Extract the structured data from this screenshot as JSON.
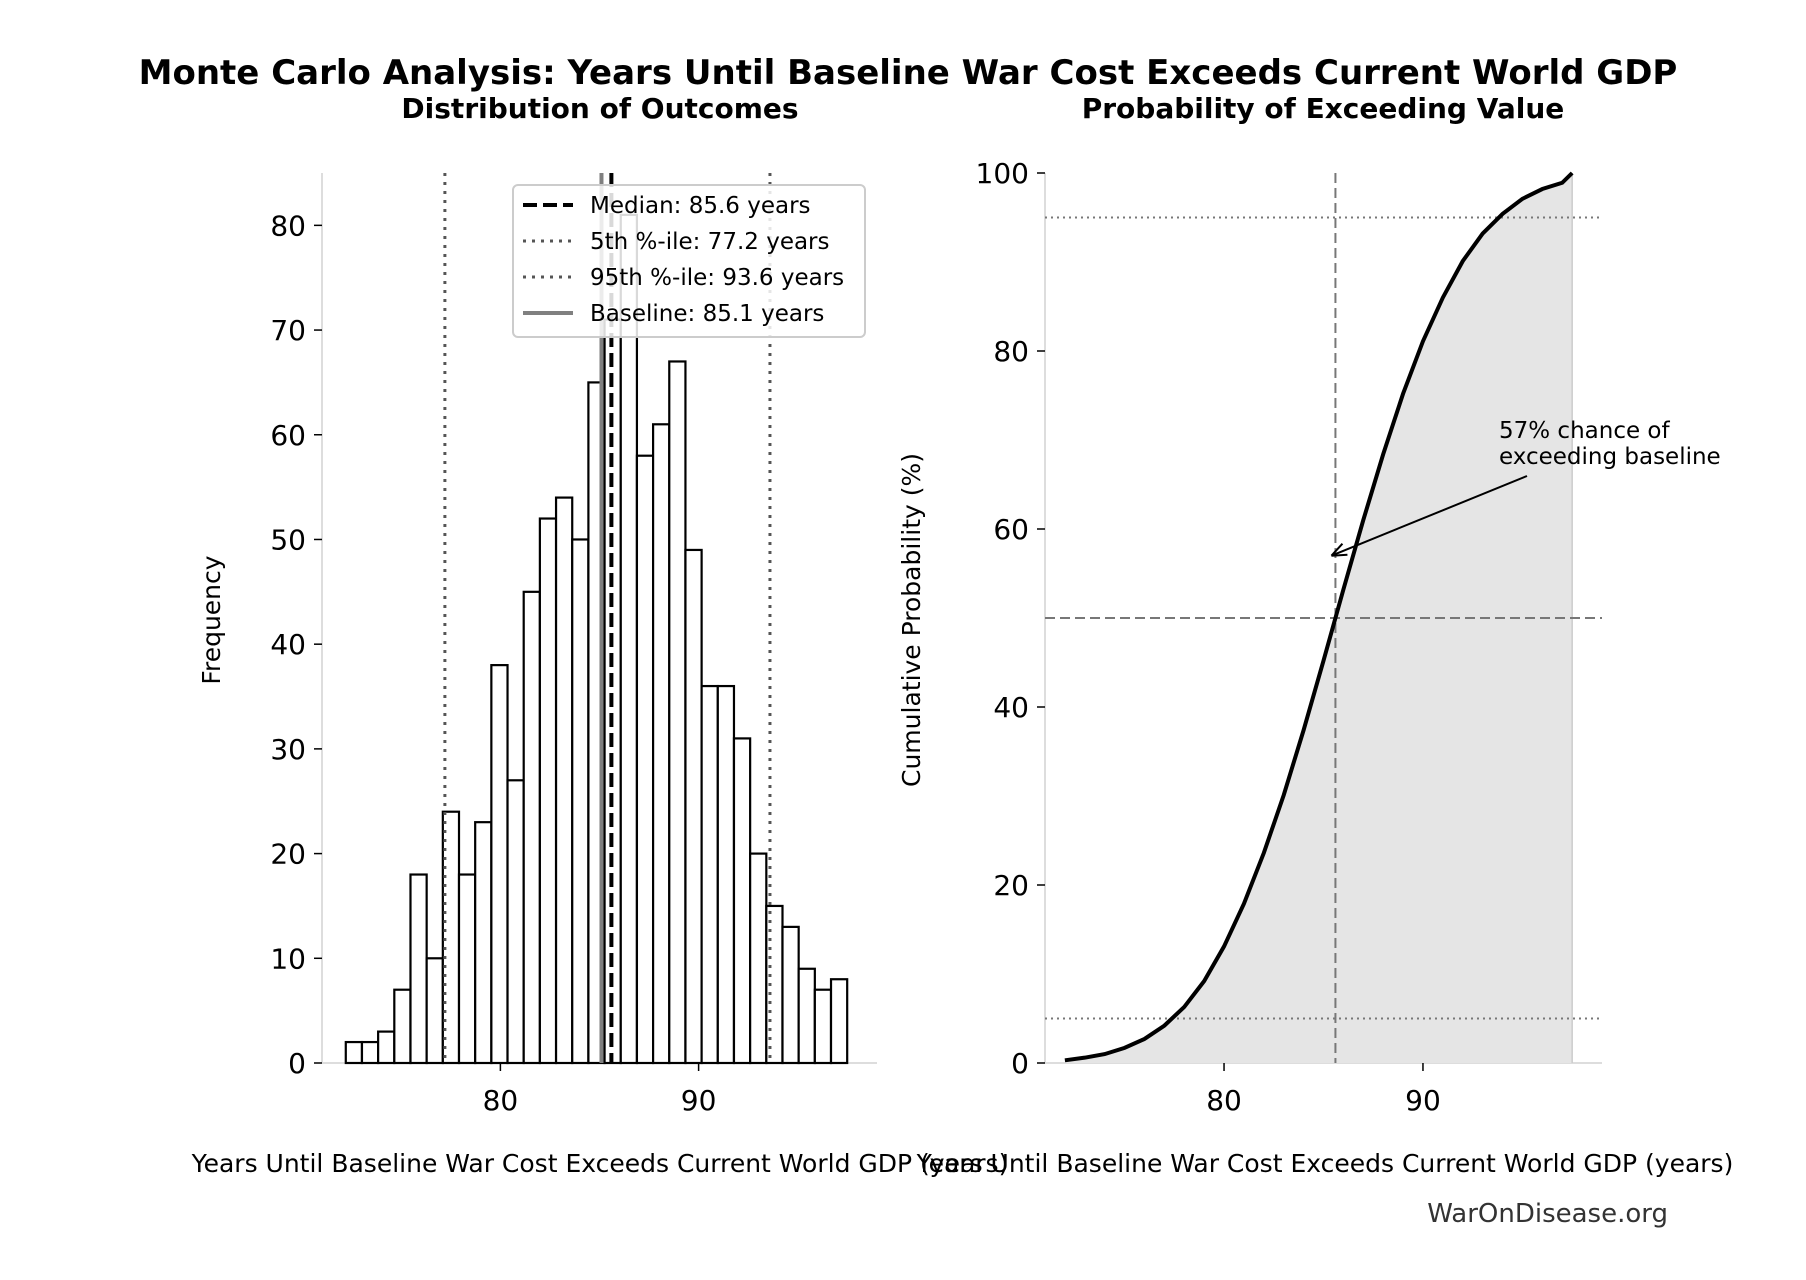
{
  "title": "Monte Carlo Analysis: Years Until Baseline War Cost Exceeds Current World GDP",
  "watermark": "WarOnDisease.org",
  "chart_data": [
    {
      "type": "bar",
      "subtitle": "Distribution of Outcomes",
      "xlabel": "Years Until Baseline War Cost Exceeds Current World GDP (years)",
      "ylabel": "Frequency",
      "xlim": [
        71,
        99
      ],
      "ylim": [
        0,
        85
      ],
      "xticks": [
        80,
        90
      ],
      "yticks": [
        0,
        10,
        20,
        30,
        40,
        50,
        60,
        70,
        80
      ],
      "bin_start": 72.2,
      "bin_width": 0.816,
      "counts": [
        2,
        2,
        3,
        7,
        18,
        10,
        24,
        18,
        23,
        38,
        27,
        45,
        52,
        54,
        50,
        65,
        71,
        81,
        58,
        61,
        67,
        49,
        36,
        36,
        31,
        20,
        15,
        13,
        9,
        7,
        8
      ],
      "reference_lines": [
        {
          "label": "Median: 85.6 years",
          "x": 85.6,
          "style": "dashed",
          "color": "#000000"
        },
        {
          "label": "5th %-ile: 77.2 years",
          "x": 77.2,
          "style": "dotted",
          "color": "#555555"
        },
        {
          "label": "95th %-ile: 93.6 years",
          "x": 93.6,
          "style": "dotted",
          "color": "#555555"
        },
        {
          "label": "Baseline: 85.1 years",
          "x": 85.1,
          "style": "solid",
          "color": "#808080"
        }
      ],
      "legend_position": "top-right"
    },
    {
      "type": "area",
      "subtitle": "Probability of Exceeding Value",
      "xlabel": "Years Until Baseline War Cost Exceeds Current World GDP (years)",
      "ylabel": "Cumulative Probability (%)",
      "xlim": [
        71,
        99
      ],
      "ylim": [
        0,
        100
      ],
      "xticks": [
        80,
        90
      ],
      "yticks": [
        0,
        20,
        40,
        60,
        80,
        100
      ],
      "x": [
        72,
        73,
        74,
        75,
        76,
        77,
        78,
        79,
        80,
        81,
        82,
        83,
        84,
        85,
        86,
        87,
        88,
        89,
        90,
        91,
        92,
        93,
        94,
        95,
        96,
        97,
        97.5
      ],
      "y": [
        0.3,
        0.6,
        1.0,
        1.7,
        2.7,
        4.2,
        6.3,
        9.2,
        13.1,
        17.9,
        23.6,
        30.1,
        37.4,
        45.2,
        53.2,
        61.0,
        68.4,
        75.2,
        81.1,
        86.0,
        90.1,
        93.2,
        95.4,
        97.1,
        98.2,
        98.9,
        100
      ],
      "fill_color": "#e5e5e5",
      "hlines": [
        95,
        50,
        5
      ],
      "vline": 85.6,
      "annotation": {
        "text_line1": "57% chance of",
        "text_line2": "exceeding baseline",
        "x": 85.6,
        "y": 57
      }
    }
  ]
}
